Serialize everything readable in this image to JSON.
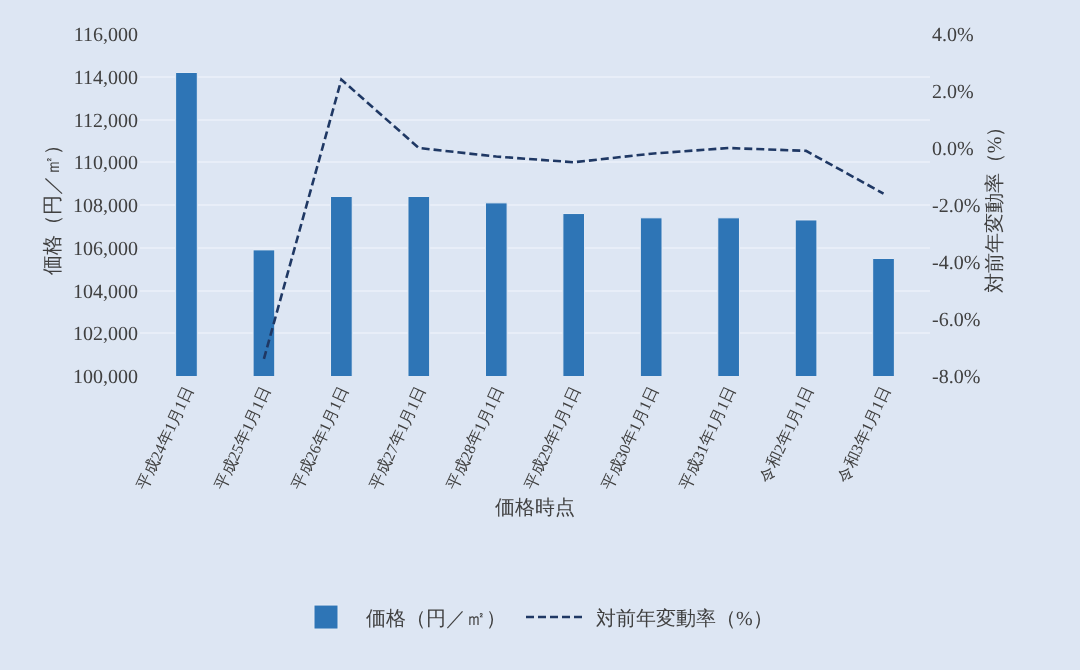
{
  "chart_data": {
    "type": "bar",
    "xlabel": "価格時点",
    "ylabel": "価格（円／㎡）",
    "y2label": "対前年変動率（%）",
    "categories": [
      "平成24年1月1日",
      "平成25年1月1日",
      "平成26年1月1日",
      "平成27年1月1日",
      "平成28年1月1日",
      "平成29年1月1日",
      "平成30年1月1日",
      "平成31年1月1日",
      "令和2年1月1日",
      "令和3年1月1日"
    ],
    "series": [
      {
        "name": "価格（円／㎡）",
        "color": "#2e75b6",
        "values": [
          114200,
          105900,
          108400,
          108400,
          108100,
          107600,
          107400,
          107400,
          107300,
          105500
        ]
      },
      {
        "name": "対前年変動率（%）",
        "type": "line",
        "axis": "y2",
        "color": "#1f3864",
        "line_style": "dashed",
        "values": [
          null,
          -7.4,
          2.4,
          0.0,
          -0.3,
          -0.5,
          -0.2,
          0.0,
          -0.1,
          -1.6
        ]
      }
    ],
    "ylim": [
      100000,
      116000
    ],
    "yticks": [
      {
        "value": 100000,
        "label": "100,000"
      },
      {
        "value": 102000,
        "label": "102,000"
      },
      {
        "value": 104000,
        "label": "104,000"
      },
      {
        "value": 106000,
        "label": "106,000"
      },
      {
        "value": 108000,
        "label": "108,000"
      },
      {
        "value": 110000,
        "label": "110,000"
      },
      {
        "value": 112000,
        "label": "112,000"
      },
      {
        "value": 114000,
        "label": "114,000"
      },
      {
        "value": 116000,
        "label": "116,000"
      }
    ],
    "y2lim": [
      -8,
      4
    ],
    "y2ticks": [
      {
        "value": -8,
        "label": "-8.0%"
      },
      {
        "value": -6,
        "label": "-6.0%"
      },
      {
        "value": -4,
        "label": "-4.0%"
      },
      {
        "value": -2,
        "label": "-2.0%"
      },
      {
        "value": 0,
        "label": "0.0%"
      },
      {
        "value": 2,
        "label": "2.0%"
      },
      {
        "value": 4,
        "label": "4.0%"
      }
    ],
    "grid": "y",
    "legend": "bottom"
  }
}
